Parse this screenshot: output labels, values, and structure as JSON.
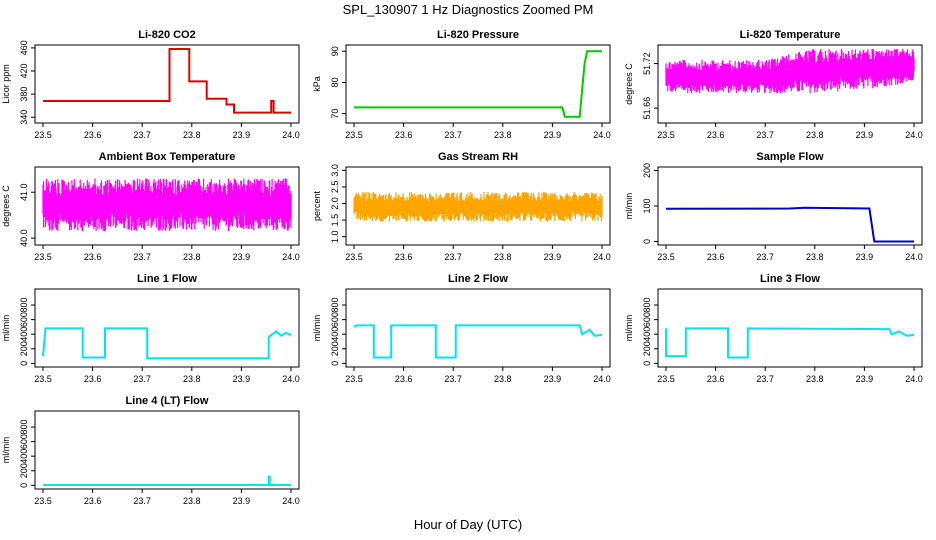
{
  "page": {
    "title": "SPL_130907  1 Hz Diagnostics Zoomed PM",
    "xlabel": "Hour of Day (UTC)"
  },
  "chart_data": [
    {
      "type": "line",
      "title": "Li-820 CO2",
      "ylabel": "Licor ppm",
      "color": "#e00000",
      "xlim": [
        23.5,
        24.0
      ],
      "ylim": [
        330,
        465
      ],
      "yticks": [
        "340",
        "380",
        "420",
        "460"
      ],
      "x": [
        23.5,
        23.755,
        23.755,
        23.795,
        23.795,
        23.83,
        23.83,
        23.87,
        23.87,
        23.885,
        23.885,
        23.96,
        23.96,
        23.965,
        23.965,
        24.0
      ],
      "y": [
        368,
        368,
        458,
        458,
        402,
        402,
        372,
        372,
        362,
        362,
        348,
        348,
        368,
        368,
        348,
        348
      ]
    },
    {
      "type": "line",
      "title": "Li-820 Pressure",
      "ylabel": "kPa",
      "color": "#00cc00",
      "xlim": [
        23.5,
        24.0
      ],
      "ylim": [
        67,
        92
      ],
      "yticks": [
        "70",
        "80",
        "90"
      ],
      "x": [
        23.5,
        23.92,
        23.925,
        23.955,
        23.96,
        23.965,
        23.97,
        24.0
      ],
      "y": [
        72,
        72,
        69,
        69,
        78,
        86,
        90,
        90
      ]
    },
    {
      "type": "band",
      "title": "Li-820 Temperature",
      "ylabel": "degrees C",
      "color": "#ff00ff",
      "xlim": [
        23.5,
        24.0
      ],
      "ylim": [
        51.64,
        51.745
      ],
      "yticks": [
        "51.66",
        "51.72"
      ],
      "x": [
        23.5,
        23.6,
        23.7,
        23.76,
        23.8,
        23.9,
        24.0
      ],
      "low": [
        51.68,
        51.68,
        51.68,
        51.68,
        51.68,
        51.685,
        51.695
      ],
      "high": [
        51.725,
        51.725,
        51.725,
        51.735,
        51.74,
        51.74,
        51.74
      ]
    },
    {
      "type": "band",
      "title": "Ambient Box Temperature",
      "ylabel": "degrees C",
      "color": "#ff00ff",
      "xlim": [
        23.5,
        24.0
      ],
      "ylim": [
        39.85,
        41.55
      ],
      "yticks": [
        "40.0",
        "41.0"
      ],
      "x": [
        23.5,
        24.0
      ],
      "low": [
        40.15,
        40.15
      ],
      "high": [
        41.3,
        41.3
      ]
    },
    {
      "type": "band",
      "title": "Gas Stream RH",
      "ylabel": "percent",
      "color": "#ffa500",
      "xlim": [
        23.5,
        24.0
      ],
      "ylim": [
        0.75,
        3.1
      ],
      "yticks": [
        "1.0",
        "1.5",
        "2.0",
        "2.5",
        "3.0"
      ],
      "x": [
        23.5,
        24.0
      ],
      "low": [
        1.45,
        1.45
      ],
      "high": [
        2.35,
        2.35
      ]
    },
    {
      "type": "line",
      "title": "Sample Flow",
      "ylabel": "ml/min",
      "color": "#0000cc",
      "xlim": [
        23.5,
        24.0
      ],
      "ylim": [
        -10,
        210
      ],
      "yticks": [
        "0",
        "100",
        "200"
      ],
      "x": [
        23.5,
        23.75,
        23.78,
        23.91,
        23.92,
        24.0
      ],
      "y": [
        92,
        93,
        95,
        93,
        0,
        0
      ]
    },
    {
      "type": "line",
      "title": "Line 1 Flow",
      "ylabel": "ml/min",
      "color": "#00e5ee",
      "xlim": [
        23.5,
        24.0
      ],
      "ylim": [
        -50,
        1020
      ],
      "yticks": [
        "0",
        "200",
        "400",
        "600",
        "800"
      ],
      "x": [
        23.5,
        23.505,
        23.58,
        23.58,
        23.625,
        23.625,
        23.71,
        23.71,
        23.955,
        23.955,
        23.97,
        23.98,
        23.99,
        24.0
      ],
      "y": [
        100,
        480,
        480,
        80,
        80,
        480,
        480,
        70,
        70,
        360,
        440,
        380,
        420,
        390
      ]
    },
    {
      "type": "line",
      "title": "Line 2 Flow",
      "ylabel": "ml/min",
      "color": "#00e5ee",
      "xlim": [
        23.5,
        24.0
      ],
      "ylim": [
        -50,
        1020
      ],
      "yticks": [
        "0",
        "200",
        "400",
        "600",
        "800"
      ],
      "x": [
        23.5,
        23.505,
        23.54,
        23.54,
        23.575,
        23.575,
        23.665,
        23.665,
        23.705,
        23.705,
        23.955,
        23.96,
        23.975,
        23.985,
        24.0
      ],
      "y": [
        500,
        520,
        520,
        80,
        80,
        520,
        520,
        80,
        80,
        520,
        520,
        400,
        460,
        380,
        390
      ]
    },
    {
      "type": "line",
      "title": "Line 3 Flow",
      "ylabel": "ml/min",
      "color": "#00e5ee",
      "xlim": [
        23.5,
        24.0
      ],
      "ylim": [
        -50,
        1020
      ],
      "yticks": [
        "0",
        "200",
        "400",
        "600",
        "800"
      ],
      "x": [
        23.5,
        23.5,
        23.54,
        23.54,
        23.625,
        23.625,
        23.665,
        23.665,
        23.95,
        23.955,
        23.97,
        23.985,
        24.0
      ],
      "y": [
        480,
        100,
        100,
        480,
        480,
        80,
        80,
        480,
        470,
        400,
        440,
        380,
        390
      ]
    },
    {
      "type": "line",
      "title": "Line 4 (LT) Flow",
      "ylabel": "ml/min",
      "color": "#00e5ee",
      "xlim": [
        23.5,
        24.0
      ],
      "ylim": [
        -50,
        1020
      ],
      "yticks": [
        "0",
        "200",
        "400",
        "600",
        "800"
      ],
      "x": [
        23.5,
        23.955,
        23.955,
        23.957,
        23.957,
        24.0
      ],
      "y": [
        5,
        5,
        120,
        120,
        5,
        5
      ]
    }
  ],
  "xticks": [
    "23.5",
    "23.6",
    "23.7",
    "23.8",
    "23.9",
    "24.0"
  ]
}
